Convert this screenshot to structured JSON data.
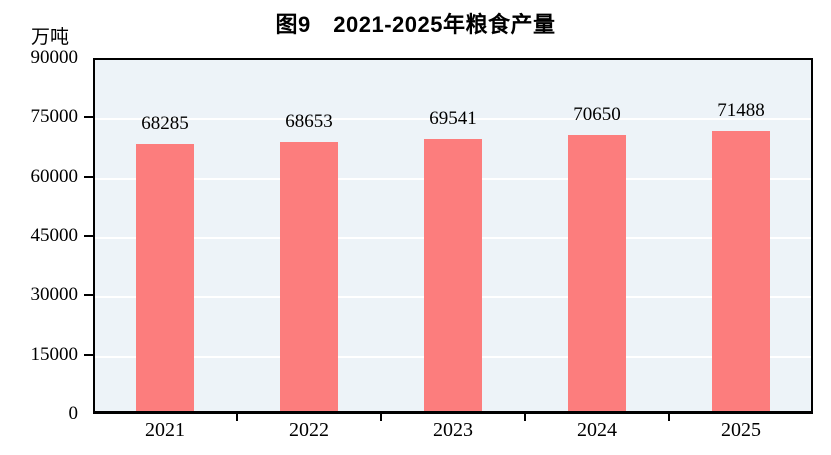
{
  "chart_data": {
    "type": "bar",
    "title": "图9　2021-2025年粮食产量",
    "unit_label": "万吨",
    "categories": [
      "2021",
      "2022",
      "2023",
      "2024",
      "2025"
    ],
    "values": [
      68285,
      68653,
      69541,
      70650,
      71488
    ],
    "value_labels": [
      "68285",
      "68653",
      "69541",
      "70650",
      "71488"
    ],
    "xlabel": "",
    "ylabel": "万吨",
    "ylim": [
      0,
      90000
    ],
    "y_ticks": [
      0,
      15000,
      30000,
      45000,
      60000,
      75000,
      90000
    ],
    "y_tick_labels": [
      "0",
      "15000",
      "30000",
      "45000",
      "60000",
      "75000",
      "90000"
    ],
    "grid": "horizontal",
    "legend_position": "none",
    "colors": {
      "bar": "#FC7D7D",
      "plot_background": "#EDF3F8",
      "gridline": "#FFFFFF",
      "axis": "#000000",
      "text": "#000000"
    }
  }
}
